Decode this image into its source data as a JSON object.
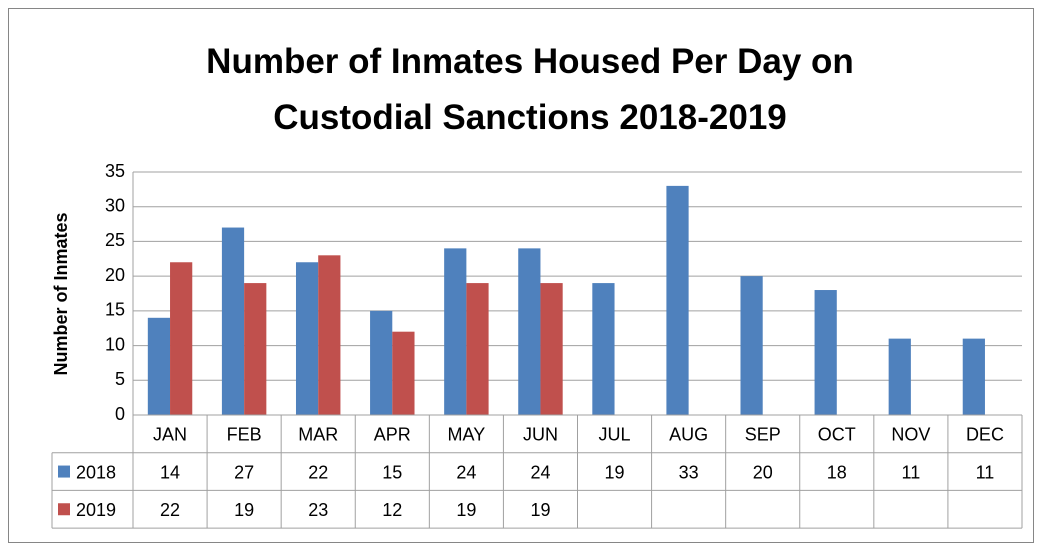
{
  "chart_data": {
    "type": "bar",
    "title": "Number of Inmates Housed Per Day on Custodial Sanctions 2018-2019",
    "y_label": "Number of Inmates",
    "categories": [
      "JAN",
      "FEB",
      "MAR",
      "APR",
      "MAY",
      "JUN",
      "JUL",
      "AUG",
      "SEP",
      "OCT",
      "NOV",
      "DEC"
    ],
    "series": [
      {
        "name": "2018",
        "color": "#4f81bd",
        "values": [
          14,
          27,
          22,
          15,
          24,
          24,
          19,
          33,
          20,
          18,
          11,
          11
        ]
      },
      {
        "name": "2019",
        "color": "#c0504d",
        "values": [
          22,
          19,
          23,
          12,
          19,
          19,
          null,
          null,
          null,
          null,
          null,
          null
        ]
      }
    ],
    "ylim": [
      0,
      35
    ],
    "yticks": [
      0,
      5,
      10,
      15,
      20,
      25,
      30,
      35
    ],
    "grid": true,
    "data_table": true
  }
}
